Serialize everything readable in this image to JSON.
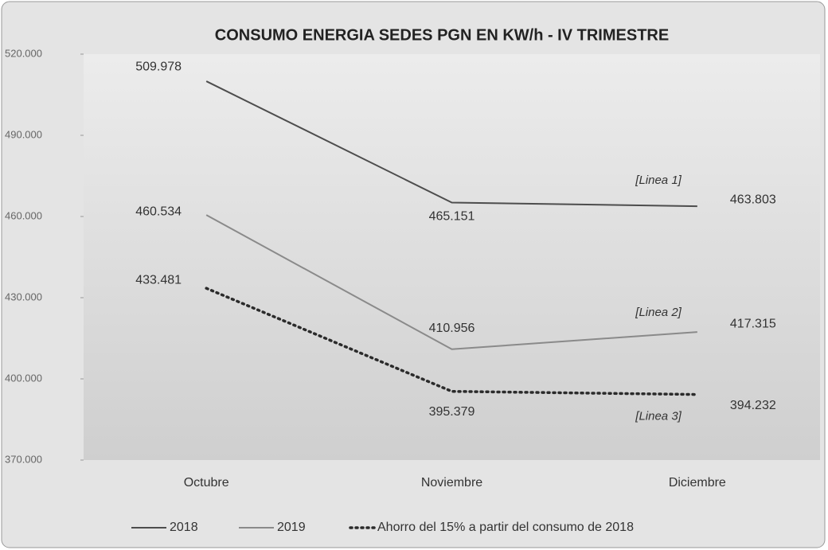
{
  "chart_data": {
    "type": "line",
    "title": "CONSUMO ENERGIA SEDES PGN EN KW/h - IV TRIMESTRE",
    "categories": [
      "Octubre",
      "Noviembre",
      "Diciembre"
    ],
    "series": [
      {
        "name": "2018",
        "color": "#4d4d4d",
        "values": [
          509978,
          465151,
          463803
        ],
        "value_labels": [
          "509.978",
          "465.151",
          "463.803"
        ]
      },
      {
        "name": "2019",
        "color": "#8a8a8a",
        "values": [
          460534,
          410956,
          417315
        ],
        "value_labels": [
          "460.534",
          "410.956",
          "417.315"
        ]
      },
      {
        "name": "Ahorro del 15% a partir del consumo de 2018",
        "color": "#2b2b2b",
        "dash": "dotted",
        "values": [
          433481,
          395379,
          394232
        ],
        "value_labels": [
          "433.481",
          "395.379",
          "394.232"
        ]
      }
    ],
    "annotations": [
      "[Linea 1]",
      "[Linea 2]",
      "[Linea 3]"
    ],
    "ylim": [
      370000,
      520000
    ],
    "yticks": [
      {
        "value": 370000,
        "label": "370.000"
      },
      {
        "value": 400000,
        "label": "400.000"
      },
      {
        "value": 430000,
        "label": "430.000"
      },
      {
        "value": 460000,
        "label": "460.000"
      },
      {
        "value": 490000,
        "label": "490.000"
      },
      {
        "value": 520000,
        "label": "520.000"
      }
    ],
    "legend": "bottom"
  }
}
